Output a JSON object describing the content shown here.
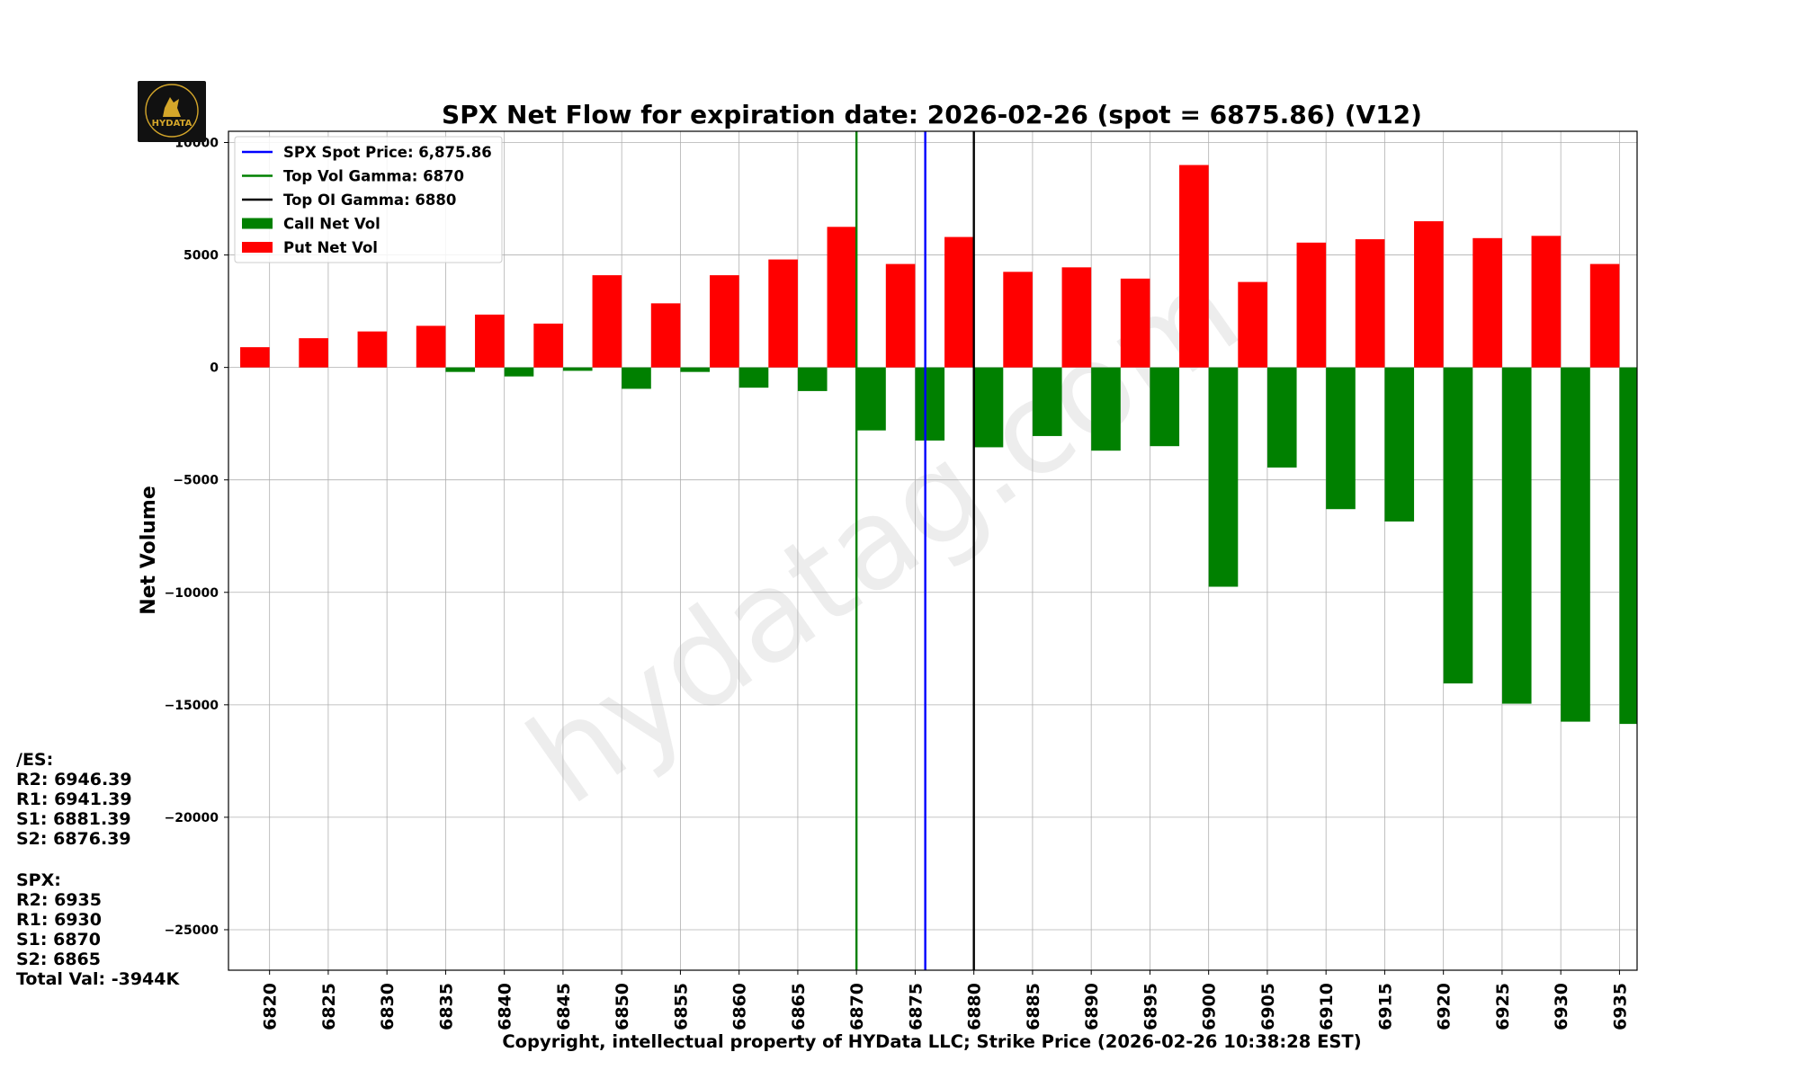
{
  "logo": {
    "text": "HYDATA",
    "colors": {
      "bg": "#111111",
      "gold": "#d4a62a"
    }
  },
  "watermark": "hydatag.com",
  "levels": {
    "es": {
      "title": "/ES:",
      "lines": [
        "R2: 6946.39",
        "R1: 6941.39",
        "S1: 6881.39",
        "S2: 6876.39"
      ]
    },
    "spx": {
      "title": "SPX:",
      "lines": [
        "R2: 6935",
        "R1: 6930",
        "S1: 6870",
        "S2: 6865"
      ]
    },
    "total": "Total Val: -3944K"
  },
  "chart_data": {
    "type": "bar",
    "title": "SPX Net Flow for expiration date: 2026-02-26 (spot = 6875.86) (V12)",
    "xlabel": "Copyright, intellectual property of HYData LLC; Strike Price (2026-02-26 10:38:28 EST)",
    "ylabel": "Net Volume",
    "ylim": [
      -26800,
      10500
    ],
    "yticks": [
      10000,
      5000,
      0,
      -5000,
      -10000,
      -15000,
      -20000,
      -25000
    ],
    "ytick_labels": [
      "10000",
      "5000",
      "0",
      "−5000",
      "−10000",
      "−15000",
      "−20000",
      "−25000"
    ],
    "xlim": [
      6816.5,
      6936.5
    ],
    "categories": [
      "6820",
      "6825",
      "6830",
      "6835",
      "6840",
      "6845",
      "6850",
      "6855",
      "6860",
      "6865",
      "6870",
      "6875",
      "6880",
      "6885",
      "6890",
      "6895",
      "6900",
      "6905",
      "6910",
      "6915",
      "6920",
      "6925",
      "6930",
      "6935"
    ],
    "series": [
      {
        "name": "Call Net Vol",
        "color": "#008000",
        "offset": 1.25,
        "values": [
          0,
          0,
          0,
          -200,
          -400,
          -150,
          -950,
          -200,
          -900,
          -1050,
          -2800,
          -3250,
          -3550,
          -3050,
          -3700,
          -3500,
          -9750,
          -4450,
          -6300,
          -6850,
          -14050,
          -14950,
          -15750,
          -15850
        ]
      },
      {
        "name": "Put Net Vol",
        "color": "#ff0000",
        "offset": -1.25,
        "values": [
          900,
          1300,
          1600,
          1850,
          2350,
          1950,
          4100,
          2850,
          4100,
          4800,
          6250,
          4600,
          5800,
          4250,
          4450,
          3950,
          9000,
          3800,
          5550,
          5700,
          6500,
          5750,
          5850,
          4600
        ]
      }
    ],
    "lines": [
      {
        "name": "SPX Spot Price: 6,875.86",
        "x": 6875.86,
        "color": "#0000ff"
      },
      {
        "name": "Top Vol Gamma: 6870",
        "x": 6870,
        "color": "#008000"
      },
      {
        "name": "Top OI Gamma: 6880",
        "x": 6880,
        "color": "#000000"
      }
    ],
    "legend_position": "top-left",
    "grid": true
  }
}
